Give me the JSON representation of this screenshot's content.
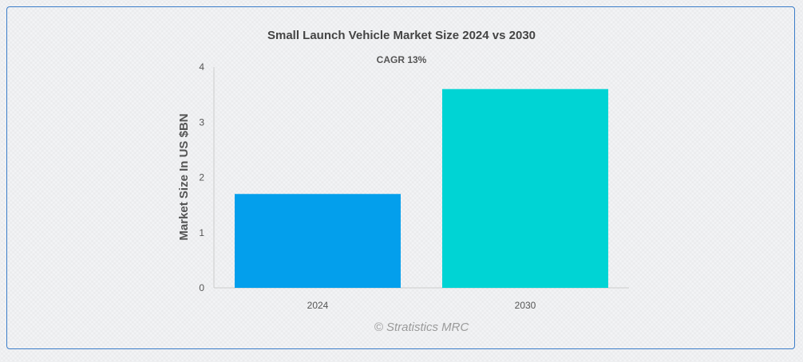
{
  "chart_data": {
    "type": "bar",
    "title": "Small Launch Vehicle Market Size 2024 vs 2030",
    "subtitle": "CAGR 13%",
    "ylabel": "Market Size In US $BN",
    "xlabel": "",
    "categories": [
      "2024",
      "2030"
    ],
    "values": [
      1.7,
      3.6
    ],
    "ylim": [
      0,
      4
    ],
    "yticks": [
      "0",
      "1",
      "2",
      "3",
      "4"
    ],
    "colors": [
      "#039fec",
      "#00d4d4"
    ],
    "grid": false,
    "legend": "none"
  },
  "watermark": "© Stratistics MRC",
  "colors": {
    "border": "#3b7dc9",
    "axis": "#cccccc"
  }
}
